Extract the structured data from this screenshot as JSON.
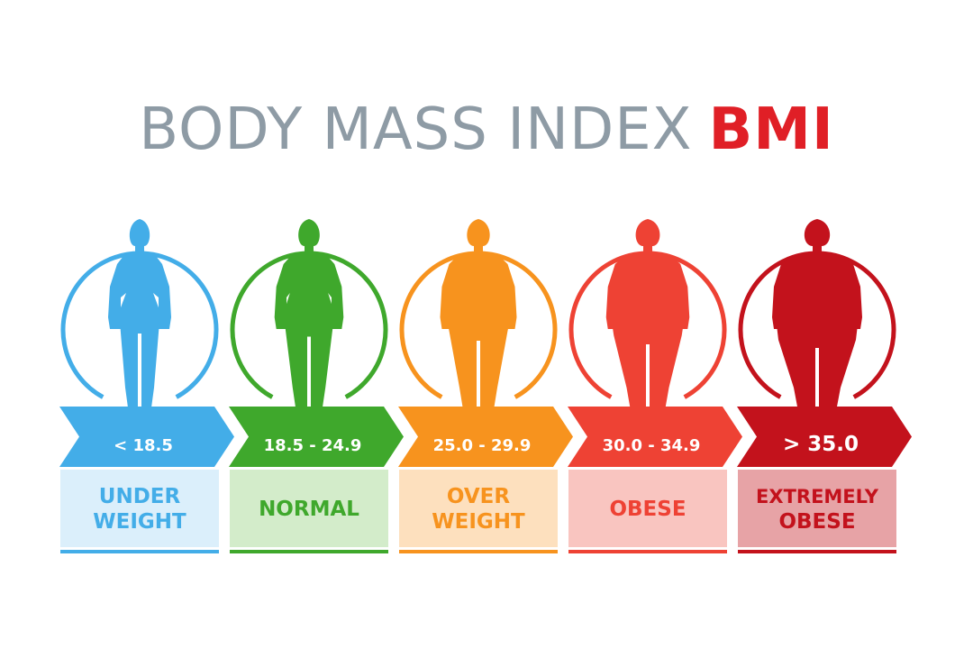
{
  "title": {
    "main": "BODY MASS INDEX",
    "accent": "BMI",
    "main_color": "#8e9ba5",
    "accent_color": "#e01f26"
  },
  "categories": [
    {
      "range": "< 18.5",
      "label_lines": [
        "UNDER",
        "WEIGHT"
      ],
      "color": "#43ade8",
      "light": "#dbeffb",
      "build": 0.0
    },
    {
      "range": "18.5 - 24.9",
      "label_lines": [
        "NORMAL"
      ],
      "color": "#3fa82c",
      "light": "#d3ecca",
      "build": 0.22
    },
    {
      "range": "25.0 - 29.9",
      "label_lines": [
        "OVER",
        "WEIGHT"
      ],
      "color": "#f7931e",
      "light": "#fde0be",
      "build": 0.5
    },
    {
      "range": "30.0 - 34.9",
      "label_lines": [
        "OBESE"
      ],
      "color": "#ee4234",
      "light": "#f9c5c0",
      "build": 0.75
    },
    {
      "range": "> 35.0",
      "label_lines": [
        "EXTREMELY",
        "OBESE"
      ],
      "color": "#c3121c",
      "light": "#e7a3a6",
      "build": 1.0
    }
  ]
}
